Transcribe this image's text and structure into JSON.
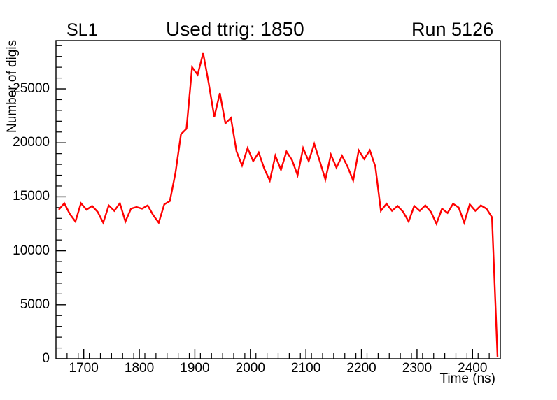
{
  "header": {
    "left_title": "SL1",
    "center_title": "Used ttrig: 1850",
    "right_title": "Run 5126"
  },
  "chart_data": {
    "type": "line",
    "title": "Used ttrig: 1850",
    "xlabel": "Time (ns)",
    "ylabel": "Number of digis",
    "xlim": [
      1650,
      2450
    ],
    "ylim": [
      0,
      29470
    ],
    "grid": false,
    "legend": false,
    "line_color": "#ff0000",
    "axis_color": "#000000",
    "x_major_ticks": [
      1700,
      1800,
      1900,
      2000,
      2100,
      2200,
      2300,
      2400
    ],
    "x_minor_tick_step": 20,
    "y_major_ticks": [
      0,
      5000,
      10000,
      15000,
      20000,
      25000
    ],
    "y_minor_tick_step": 1000,
    "x": [
      1655,
      1665,
      1675,
      1685,
      1695,
      1705,
      1715,
      1725,
      1735,
      1745,
      1755,
      1765,
      1775,
      1785,
      1795,
      1805,
      1815,
      1825,
      1835,
      1845,
      1855,
      1865,
      1875,
      1885,
      1895,
      1905,
      1915,
      1925,
      1935,
      1945,
      1955,
      1965,
      1975,
      1985,
      1995,
      2005,
      2015,
      2025,
      2035,
      2045,
      2055,
      2065,
      2075,
      2085,
      2095,
      2105,
      2115,
      2125,
      2135,
      2145,
      2155,
      2165,
      2175,
      2185,
      2195,
      2205,
      2215,
      2225,
      2235,
      2245,
      2255,
      2265,
      2275,
      2285,
      2295,
      2305,
      2315,
      2325,
      2335,
      2345,
      2355,
      2365,
      2375,
      2385,
      2395,
      2405,
      2415,
      2425,
      2435,
      2445
    ],
    "y": [
      13800,
      14400,
      13400,
      12700,
      14400,
      13800,
      14150,
      13600,
      12600,
      14200,
      13700,
      14400,
      12700,
      13900,
      14050,
      13900,
      14200,
      13300,
      12600,
      14300,
      14600,
      17200,
      20800,
      21300,
      27000,
      26300,
      28300,
      25500,
      22400,
      24600,
      21800,
      22300,
      19200,
      17900,
      19500,
      18300,
      19100,
      17600,
      16500,
      18800,
      17500,
      19200,
      18400,
      17000,
      19500,
      18300,
      19900,
      18300,
      16600,
      18900,
      17700,
      18800,
      17800,
      16500,
      19300,
      18500,
      19300,
      17800,
      13700,
      14350,
      13700,
      14150,
      13600,
      12700,
      14150,
      13700,
      14200,
      13600,
      12500,
      13900,
      13500,
      14350,
      14000,
      12600,
      14300,
      13700,
      14200,
      13900,
      13100,
      200
    ]
  }
}
